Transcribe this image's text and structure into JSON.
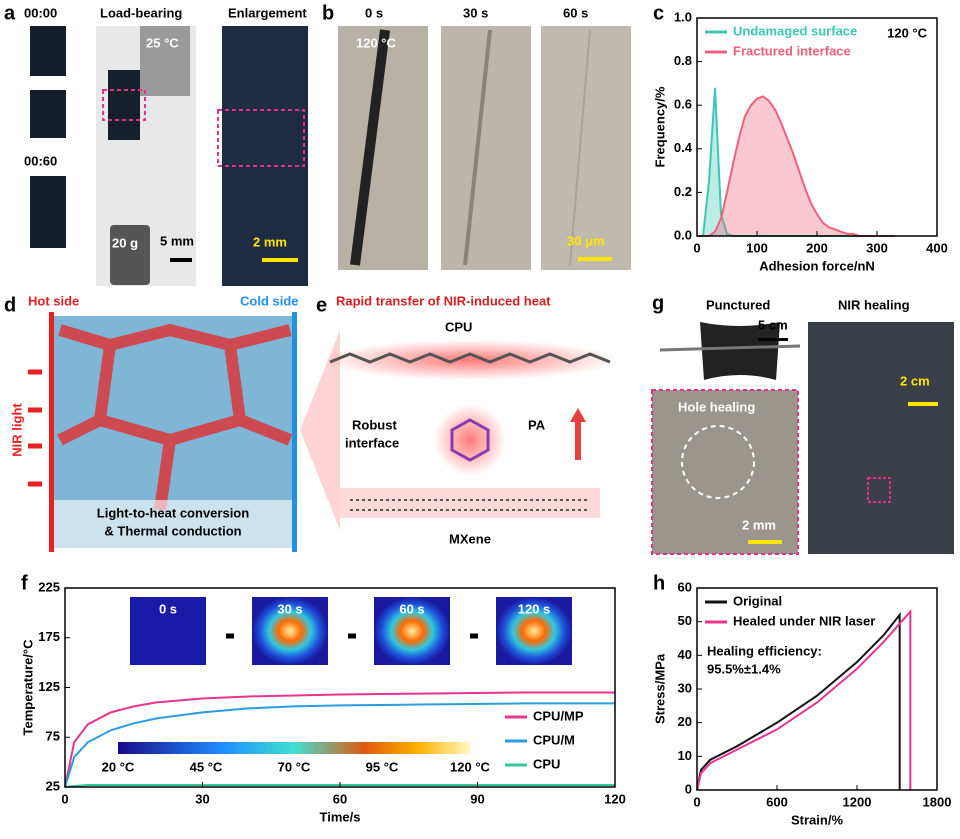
{
  "figure": {
    "a": {
      "label": "a",
      "time_start": "00:00",
      "time_end": "00:60",
      "load_bearing": "Load-bearing",
      "temperature": "25 °C",
      "weight": "20 g",
      "scale": "5 mm",
      "enlargement": "Enlargement",
      "scale_enlarged": "2 mm"
    },
    "b": {
      "label": "b",
      "times": [
        "0 s",
        "30 s",
        "60 s"
      ],
      "temperature": "120 °C",
      "scale": "30 μm"
    },
    "d": {
      "label": "d",
      "hot": "Hot side",
      "cold": "Cold side",
      "light": "NIR light",
      "caption1": "Light-to-heat conversion",
      "caption2": "& Thermal conduction"
    },
    "e": {
      "label": "e",
      "title": "Rapid transfer of NIR-induced heat",
      "cpu": "CPU",
      "interface1": "Robust",
      "interface2": "interface",
      "pa": "PA",
      "mxene": "MXene"
    },
    "g": {
      "label": "g",
      "punctured": "Punctured",
      "scale1": "5 cm",
      "healing": "NIR healing",
      "scale2": "2 cm",
      "hole": "Hole healing",
      "scale3": "2 mm"
    }
  },
  "chart_data": [
    {
      "type": "line",
      "panel_label": "c",
      "x_label": "Adhesion force/nN",
      "y_label": "Frequency/%",
      "annotation": "120 °C",
      "legend": "upper left",
      "fill": true,
      "x": [
        0,
        10,
        20,
        30,
        40,
        50,
        60,
        70,
        80,
        90,
        100,
        110,
        120,
        130,
        140,
        150,
        160,
        170,
        180,
        190,
        200,
        210,
        220,
        230,
        240,
        250,
        260,
        270,
        280,
        290,
        300,
        310,
        320,
        330
      ],
      "series": [
        {
          "name": "Undamaged surface",
          "color": "#3cc8b4",
          "values": [
            0,
            0,
            0.25,
            0.68,
            0.1,
            0.01,
            0,
            0,
            0,
            0,
            0,
            0,
            0,
            0,
            0,
            0,
            0,
            0,
            0,
            0,
            0,
            0,
            0,
            0,
            0,
            0,
            0,
            0,
            0,
            0,
            0,
            0,
            0,
            0
          ]
        },
        {
          "name": "Fractured interface",
          "color": "#f0607a",
          "values": [
            0,
            0,
            0,
            0.02,
            0.08,
            0.2,
            0.33,
            0.45,
            0.55,
            0.6,
            0.63,
            0.64,
            0.62,
            0.58,
            0.52,
            0.45,
            0.38,
            0.3,
            0.22,
            0.15,
            0.1,
            0.06,
            0.04,
            0.03,
            0.02,
            0.01,
            0.01,
            0,
            0,
            0,
            0,
            0,
            0,
            0
          ]
        }
      ],
      "xlim": [
        0,
        400
      ],
      "xticks": [
        0,
        100,
        200,
        300,
        400
      ],
      "ylim": [
        0,
        1.0
      ],
      "yticks": [
        {
          "value": 0,
          "label": "0.0"
        },
        0.2,
        0.4,
        0.6,
        0.8,
        {
          "value": 1.0,
          "label": "1.0"
        }
      ]
    },
    {
      "type": "line",
      "panel_label": "f",
      "x_label": "Time/s",
      "y_label": "Temperature/°C",
      "legend": "lower right",
      "inset_labels": [
        "0 s",
        "30 s",
        "60 s",
        "120 s"
      ],
      "colorbar_labels": [
        "20 °C",
        "45 °C",
        "70 °C",
        "95 °C",
        "120 °C"
      ],
      "x": [
        0,
        2,
        5,
        10,
        15,
        20,
        30,
        40,
        50,
        60,
        80,
        100,
        120
      ],
      "series": [
        {
          "name": "CPU/MP",
          "color": "#e8348c",
          "values": [
            25,
            70,
            88,
            100,
            106,
            110,
            114,
            116,
            117,
            118,
            119,
            120,
            120
          ]
        },
        {
          "name": "CPU/M",
          "color": "#2a9de0",
          "values": [
            25,
            55,
            70,
            82,
            89,
            94,
            100,
            104,
            106,
            107,
            108,
            109,
            109
          ]
        },
        {
          "name": "CPU",
          "color": "#2fc89a",
          "values": [
            25,
            26,
            27,
            27,
            27,
            27,
            27,
            27,
            27,
            27,
            27,
            27,
            27
          ]
        }
      ],
      "xlim": [
        0,
        120
      ],
      "xticks": [
        0,
        30,
        60,
        90,
        120
      ],
      "ylim": [
        25,
        225
      ],
      "yticks": [
        25,
        75,
        125,
        175,
        225
      ]
    },
    {
      "type": "line",
      "panel_label": "h",
      "x_label": "Strain/%",
      "y_label": "Stress/MPa",
      "legend": "upper left",
      "annotations": [
        "Healing efficiency:",
        "95.5%±1.4%"
      ],
      "series": [
        {
          "name": "Original",
          "color": "#111111",
          "x": [
            0,
            30,
            100,
            300,
            600,
            900,
            1200,
            1400,
            1520,
            1520
          ],
          "values": [
            0,
            6,
            9,
            13,
            20,
            28,
            38,
            46,
            52,
            0
          ]
        },
        {
          "name": "Healed under NIR laser",
          "color": "#e8348c",
          "x": [
            0,
            30,
            100,
            300,
            600,
            900,
            1200,
            1400,
            1600,
            1600
          ],
          "values": [
            0,
            5,
            8,
            12,
            18,
            26,
            36,
            44,
            53,
            0
          ]
        }
      ],
      "xlim": [
        0,
        1800
      ],
      "xticks": [
        0,
        600,
        1200,
        1800
      ],
      "ylim": [
        0,
        60
      ],
      "yticks": [
        0,
        10,
        20,
        30,
        40,
        50,
        60
      ]
    }
  ]
}
